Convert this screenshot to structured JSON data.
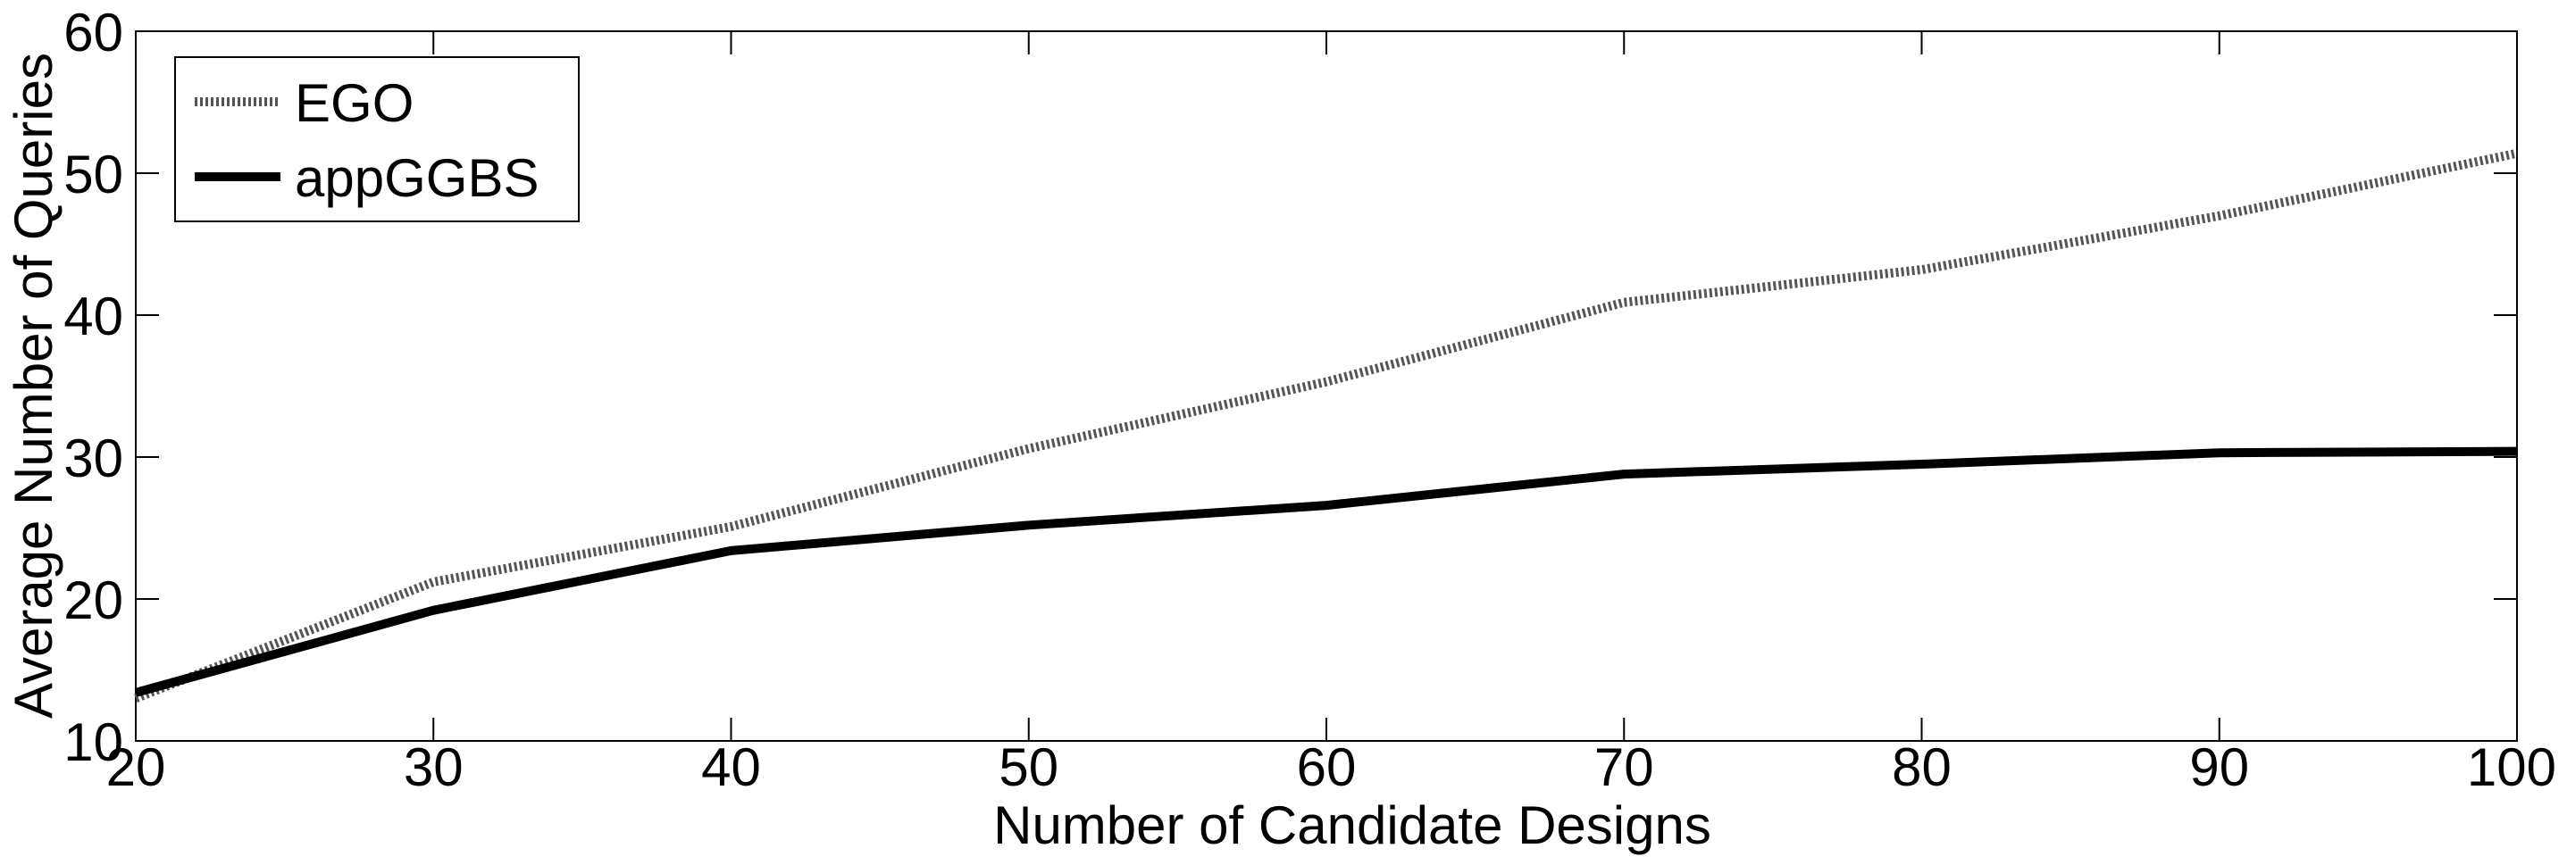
{
  "chart_data": {
    "type": "line",
    "title": "",
    "xlabel": "Number of Candidate Designs",
    "ylabel": "Average Number of Queries",
    "xlim": [
      20,
      100
    ],
    "ylim": [
      10,
      60
    ],
    "xticks": [
      20,
      30,
      40,
      50,
      60,
      70,
      80,
      90,
      100
    ],
    "yticks": [
      10,
      20,
      30,
      40,
      50,
      60
    ],
    "grid": false,
    "legend_position": "top-left",
    "series": [
      {
        "name": "EGO",
        "style": "dotted",
        "color": "#555555",
        "x": [
          20,
          30,
          40,
          50,
          60,
          70,
          80,
          90,
          100
        ],
        "y": [
          13.0,
          21.2,
          25.1,
          30.6,
          35.3,
          40.9,
          43.2,
          47.0,
          51.4
        ]
      },
      {
        "name": "appGGBS",
        "style": "solid",
        "color": "#000000",
        "x": [
          20,
          30,
          40,
          50,
          60,
          70,
          80,
          90,
          100
        ],
        "y": [
          13.4,
          19.2,
          23.4,
          25.2,
          26.6,
          28.8,
          29.5,
          30.3,
          30.4
        ]
      }
    ]
  }
}
